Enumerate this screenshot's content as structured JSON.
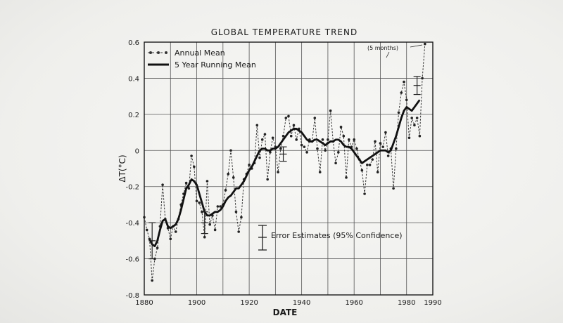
{
  "chart_data": {
    "type": "line",
    "title": "GLOBAL TEMPERATURE TREND",
    "xlabel": "DATE",
    "ylabel": "ΔT(°C)",
    "xlim": [
      1880,
      1990
    ],
    "ylim": [
      -0.8,
      0.6
    ],
    "x_ticks": [
      1880,
      1900,
      1920,
      1940,
      1960,
      1980,
      1990
    ],
    "x_tick_labels": [
      "1880",
      "1900",
      "1920",
      "1940",
      "1960",
      "1980",
      "1990"
    ],
    "y_ticks": [
      -0.8,
      -0.6,
      -0.4,
      -0.2,
      0,
      0.2,
      0.4,
      0.6
    ],
    "y_tick_labels": [
      "-0.8",
      "-0.6",
      "-0.4",
      "-0.2",
      "0",
      "0.2",
      "0.4",
      "0.6"
    ],
    "grid": true,
    "legend_position": "top-left",
    "series": [
      {
        "name": "Annual Mean",
        "style": "dashed-dots",
        "x": [
          1880,
          1881,
          1882,
          1883,
          1884,
          1885,
          1886,
          1887,
          1888,
          1889,
          1890,
          1891,
          1892,
          1893,
          1894,
          1895,
          1896,
          1897,
          1898,
          1899,
          1900,
          1901,
          1902,
          1903,
          1904,
          1905,
          1906,
          1907,
          1908,
          1909,
          1910,
          1911,
          1912,
          1913,
          1914,
          1915,
          1916,
          1917,
          1918,
          1919,
          1920,
          1921,
          1922,
          1923,
          1924,
          1925,
          1926,
          1927,
          1928,
          1929,
          1930,
          1931,
          1932,
          1933,
          1934,
          1935,
          1936,
          1937,
          1938,
          1939,
          1940,
          1941,
          1942,
          1943,
          1944,
          1945,
          1946,
          1947,
          1948,
          1949,
          1950,
          1951,
          1952,
          1953,
          1954,
          1955,
          1956,
          1957,
          1958,
          1959,
          1960,
          1961,
          1962,
          1963,
          1964,
          1965,
          1966,
          1967,
          1968,
          1969,
          1970,
          1971,
          1972,
          1973,
          1974,
          1975,
          1976,
          1977,
          1978,
          1979,
          1980,
          1981,
          1982,
          1983,
          1984,
          1985,
          1986,
          1987
        ],
        "values": [
          -0.37,
          -0.44,
          -0.49,
          -0.72,
          -0.6,
          -0.54,
          -0.42,
          -0.19,
          -0.38,
          -0.43,
          -0.49,
          -0.42,
          -0.45,
          -0.38,
          -0.3,
          -0.24,
          -0.18,
          -0.21,
          -0.03,
          -0.09,
          -0.28,
          -0.29,
          -0.34,
          -0.48,
          -0.17,
          -0.41,
          -0.36,
          -0.44,
          -0.31,
          -0.31,
          -0.3,
          -0.22,
          -0.13,
          0.0,
          -0.15,
          -0.34,
          -0.45,
          -0.37,
          -0.16,
          -0.13,
          -0.08,
          -0.1,
          -0.07,
          0.14,
          -0.04,
          0.06,
          0.09,
          -0.16,
          -0.01,
          0.07,
          0.02,
          -0.12,
          0.01,
          0.08,
          0.18,
          0.19,
          0.08,
          0.14,
          0.06,
          0.12,
          0.03,
          0.02,
          -0.01,
          0.06,
          0.05,
          0.18,
          0.01,
          -0.12,
          0.06,
          0.0,
          0.06,
          0.22,
          0.05,
          -0.07,
          -0.01,
          0.13,
          0.08,
          -0.15,
          0.06,
          0.02,
          0.06,
          0.01,
          -0.05,
          -0.11,
          -0.24,
          -0.08,
          -0.08,
          -0.05,
          0.05,
          -0.12,
          0.04,
          0.02,
          0.1,
          -0.03,
          0.01,
          -0.21,
          0.01,
          0.21,
          0.32,
          0.38,
          0.28,
          0.07,
          0.18,
          0.14,
          0.18,
          0.08,
          0.4,
          0.59
        ]
      },
      {
        "name": "5 Year Running Mean",
        "style": "solid",
        "x": [
          1882,
          1883,
          1884,
          1885,
          1886,
          1887,
          1888,
          1889,
          1890,
          1891,
          1892,
          1893,
          1894,
          1895,
          1896,
          1897,
          1898,
          1899,
          1900,
          1901,
          1902,
          1903,
          1904,
          1905,
          1906,
          1907,
          1908,
          1909,
          1910,
          1911,
          1912,
          1913,
          1914,
          1915,
          1916,
          1917,
          1918,
          1919,
          1920,
          1921,
          1922,
          1923,
          1924,
          1925,
          1926,
          1927,
          1928,
          1929,
          1930,
          1931,
          1932,
          1933,
          1934,
          1935,
          1936,
          1937,
          1938,
          1939,
          1940,
          1941,
          1942,
          1943,
          1944,
          1945,
          1946,
          1947,
          1948,
          1949,
          1950,
          1951,
          1952,
          1953,
          1954,
          1955,
          1956,
          1957,
          1958,
          1959,
          1960,
          1961,
          1962,
          1963,
          1964,
          1965,
          1966,
          1967,
          1968,
          1969,
          1970,
          1971,
          1972,
          1973,
          1974,
          1975,
          1976,
          1977,
          1978,
          1979,
          1980,
          1981,
          1982,
          1983,
          1984,
          1985
        ],
        "values": [
          -0.49,
          -0.52,
          -0.53,
          -0.5,
          -0.44,
          -0.39,
          -0.38,
          -0.42,
          -0.43,
          -0.42,
          -0.41,
          -0.38,
          -0.33,
          -0.27,
          -0.21,
          -0.19,
          -0.16,
          -0.17,
          -0.19,
          -0.24,
          -0.29,
          -0.34,
          -0.36,
          -0.36,
          -0.35,
          -0.34,
          -0.34,
          -0.33,
          -0.31,
          -0.28,
          -0.26,
          -0.25,
          -0.23,
          -0.21,
          -0.21,
          -0.19,
          -0.17,
          -0.14,
          -0.11,
          -0.09,
          -0.06,
          -0.03,
          0.0,
          0.01,
          0.01,
          0.0,
          0.0,
          0.01,
          0.01,
          0.02,
          0.04,
          0.06,
          0.08,
          0.1,
          0.11,
          0.12,
          0.12,
          0.11,
          0.1,
          0.08,
          0.06,
          0.05,
          0.05,
          0.06,
          0.06,
          0.05,
          0.04,
          0.03,
          0.04,
          0.05,
          0.05,
          0.06,
          0.06,
          0.05,
          0.03,
          0.02,
          0.02,
          0.01,
          -0.01,
          -0.03,
          -0.05,
          -0.07,
          -0.06,
          -0.05,
          -0.04,
          -0.03,
          -0.02,
          -0.01,
          0.0,
          0.0,
          0.0,
          -0.01,
          0.0,
          0.04,
          0.08,
          0.13,
          0.18,
          0.22,
          0.24,
          0.23,
          0.22,
          0.24,
          0.26,
          0.28
        ]
      }
    ],
    "error_bars": [
      {
        "x": 1883,
        "y": -0.5,
        "half_width": 0.1
      },
      {
        "x": 1903,
        "y": -0.4,
        "half_width": 0.06
      },
      {
        "x": 1933,
        "y": -0.02,
        "half_width": 0.04
      },
      {
        "x": 1984,
        "y": 0.36,
        "half_width": 0.05
      }
    ],
    "legend": {
      "annual_label": "Annual Mean",
      "running_label": "5 Year Running Mean"
    },
    "annotations": {
      "five_months": "(5 months)",
      "error_estimate": "Error Estimates (95% Confidence)"
    }
  }
}
